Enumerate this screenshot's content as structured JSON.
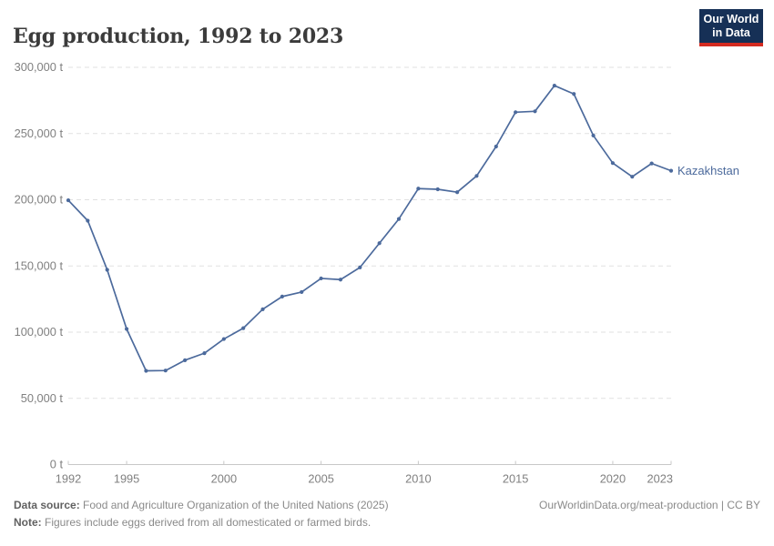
{
  "header": {
    "title": "Egg production, 1992 to 2023"
  },
  "logo": {
    "line1": "Our World",
    "line2": "in Data"
  },
  "chart_data": {
    "type": "line",
    "title": "Egg production, 1992 to 2023",
    "xlabel": "",
    "ylabel": "",
    "unit": "t",
    "xlim": [
      1992,
      2023
    ],
    "ylim": [
      0,
      300000
    ],
    "grid": true,
    "legend_position": "end-of-line-label",
    "x": [
      1992,
      1993,
      1994,
      1995,
      1996,
      1997,
      1998,
      1999,
      2000,
      2001,
      2002,
      2003,
      2004,
      2005,
      2006,
      2007,
      2008,
      2009,
      2010,
      2011,
      2012,
      2013,
      2014,
      2015,
      2016,
      2017,
      2018,
      2019,
      2020,
      2021,
      2022,
      2023
    ],
    "series": [
      {
        "name": "Kazakhstan",
        "color": "#4C6A9C",
        "values": [
          199600,
          184200,
          147100,
          102400,
          70800,
          71000,
          78800,
          84100,
          94800,
          103000,
          117300,
          126900,
          130300,
          140600,
          139700,
          148900,
          167200,
          185500,
          208400,
          207900,
          205700,
          218000,
          240200,
          266100,
          266800,
          286200,
          279900,
          248500,
          227700,
          217400,
          227400,
          221900
        ]
      }
    ],
    "yticks": [
      {
        "value": 0,
        "label": "0 t"
      },
      {
        "value": 50000,
        "label": "50,000 t"
      },
      {
        "value": 100000,
        "label": "100,000 t"
      },
      {
        "value": 150000,
        "label": "150,000 t"
      },
      {
        "value": 200000,
        "label": "200,000 t"
      },
      {
        "value": 250000,
        "label": "250,000 t"
      },
      {
        "value": 300000,
        "label": "300,000 t"
      }
    ],
    "xticks": [
      {
        "value": 1992,
        "label": "1992"
      },
      {
        "value": 1995,
        "label": "1995"
      },
      {
        "value": 2000,
        "label": "2000"
      },
      {
        "value": 2005,
        "label": "2005"
      },
      {
        "value": 2010,
        "label": "2010"
      },
      {
        "value": 2015,
        "label": "2015"
      },
      {
        "value": 2020,
        "label": "2020"
      },
      {
        "value": 2023,
        "label": "2023"
      }
    ]
  },
  "footer": {
    "source_label": "Data source:",
    "source_text": " Food and Agriculture Organization of the United Nations (2025)",
    "note_label": "Note:",
    "note_text": " Figures include eggs derived from all domesticated or farmed birds.",
    "credit": "OurWorldinData.org/meat-production | CC BY"
  },
  "colors": {
    "line": "#4C6A9C",
    "gridline": "#e1e1e1",
    "axis": "#c8c8c8",
    "tick_label": "#808080",
    "title": "#3b3b3b",
    "logo_bg": "#163056",
    "logo_stripe": "#d42b21"
  }
}
